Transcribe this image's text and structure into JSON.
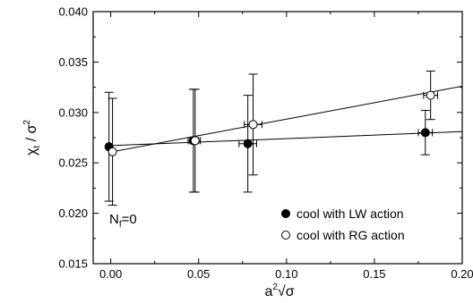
{
  "chart_data": {
    "type": "scatter",
    "xlabel": {
      "base": "a",
      "sup": "2",
      "rest": "√σ"
    },
    "ylabel": {
      "base": "χ",
      "sub": "t",
      "mid": " / σ",
      "sup": "2"
    },
    "xlim": [
      -0.01,
      0.2
    ],
    "ylim": [
      0.015,
      0.04
    ],
    "xticks": [
      0.0,
      0.05,
      0.1,
      0.15,
      0.2
    ],
    "xtick_labels": [
      "0.00",
      "0.05",
      "0.10",
      "0.15",
      "0.20"
    ],
    "yticks": [
      0.015,
      0.02,
      0.025,
      0.03,
      0.035,
      0.04
    ],
    "ytick_labels": [
      "0.015",
      "0.020",
      "0.025",
      "0.030",
      "0.035",
      "0.040"
    ],
    "grid": false,
    "legend_position": "bottom-right",
    "annotation": {
      "base": "N",
      "sub": "f",
      "rest": "=0"
    },
    "series": [
      {
        "name": "cool with LW action",
        "marker": "filled-circle",
        "points": [
          {
            "x": -0.001,
            "y": 0.0266,
            "yerr": 0.0054,
            "xerr": 0.0
          },
          {
            "x": 0.047,
            "y": 0.0272,
            "yerr": 0.0051,
            "xerr": 0.003
          },
          {
            "x": 0.078,
            "y": 0.0269,
            "yerr": 0.0048,
            "xerr": 0.005
          },
          {
            "x": 0.179,
            "y": 0.028,
            "yerr": 0.0022,
            "xerr": 0.004
          }
        ],
        "fit": {
          "x0": -0.001,
          "y0": 0.0267,
          "x1": 0.2,
          "y1": 0.0281
        }
      },
      {
        "name": "cool with RG action",
        "marker": "open-circle",
        "points": [
          {
            "x": 0.001,
            "y": 0.0261,
            "yerr": 0.0053,
            "xerr": 0.0
          },
          {
            "x": 0.048,
            "y": 0.0272,
            "yerr": 0.0051,
            "xerr": 0.003
          },
          {
            "x": 0.081,
            "y": 0.0288,
            "yerr": 0.005,
            "xerr": 0.005
          },
          {
            "x": 0.182,
            "y": 0.0317,
            "yerr": 0.0024,
            "xerr": 0.004
          }
        ],
        "fit": {
          "x0": 0.001,
          "y0": 0.0261,
          "x1": 0.2,
          "y1": 0.0326
        }
      }
    ],
    "colors": {
      "axis": "#000000",
      "marker": "#000000",
      "background": "#ffffff"
    }
  }
}
